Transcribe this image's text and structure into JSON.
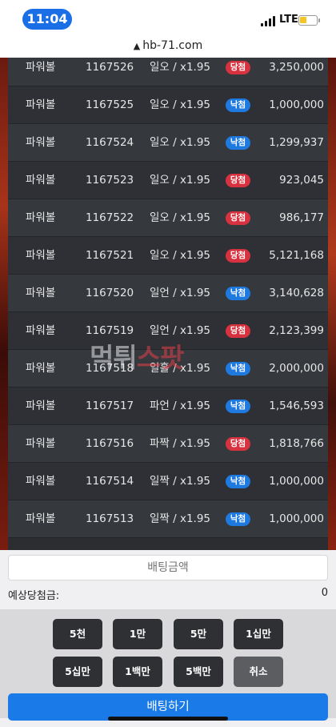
{
  "status": {
    "time": "11:04",
    "network": "LTE"
  },
  "browser": {
    "url": "hb-71.com"
  },
  "rows": [
    {
      "game": "파워볼",
      "round": "1167526",
      "pick": "일오 / x1.95",
      "result": "당첨",
      "amount": "3,250,000"
    },
    {
      "game": "파워볼",
      "round": "1167525",
      "pick": "일오 / x1.95",
      "result": "낙첨",
      "amount": "1,000,000"
    },
    {
      "game": "파워볼",
      "round": "1167524",
      "pick": "일오 / x1.95",
      "result": "낙첨",
      "amount": "1,299,937"
    },
    {
      "game": "파워볼",
      "round": "1167523",
      "pick": "일오 / x1.95",
      "result": "당첨",
      "amount": "923,045"
    },
    {
      "game": "파워볼",
      "round": "1167522",
      "pick": "일오 / x1.95",
      "result": "당첨",
      "amount": "986,177"
    },
    {
      "game": "파워볼",
      "round": "1167521",
      "pick": "일오 / x1.95",
      "result": "당첨",
      "amount": "5,121,168"
    },
    {
      "game": "파워볼",
      "round": "1167520",
      "pick": "일언 / x1.95",
      "result": "낙첨",
      "amount": "3,140,628"
    },
    {
      "game": "파워볼",
      "round": "1167519",
      "pick": "일언 / x1.95",
      "result": "당첨",
      "amount": "2,123,399"
    },
    {
      "game": "파워볼",
      "round": "1167518",
      "pick": "일홀 / x1.95",
      "result": "낙첨",
      "amount": "2,000,000"
    },
    {
      "game": "파워볼",
      "round": "1167517",
      "pick": "파언 / x1.95",
      "result": "낙첨",
      "amount": "1,546,593"
    },
    {
      "game": "파워볼",
      "round": "1167516",
      "pick": "파짝 / x1.95",
      "result": "당첨",
      "amount": "1,818,766"
    },
    {
      "game": "파워볼",
      "round": "1167514",
      "pick": "일짝 / x1.95",
      "result": "낙첨",
      "amount": "1,000,000"
    },
    {
      "game": "파워볼",
      "round": "1167513",
      "pick": "일짝 / x1.95",
      "result": "낙첨",
      "amount": "1,000,000"
    }
  ],
  "watermark": {
    "part1": "먹튀",
    "part2": "스팟"
  },
  "betting": {
    "amount_placeholder": "배팅금액",
    "expected_label": "예상당첨금:",
    "expected_value": "0",
    "chips": [
      "5천",
      "1만",
      "5만",
      "1십만",
      "5십만",
      "1백만",
      "5백만",
      "취소"
    ],
    "submit_label": "배팅하기"
  },
  "colors": {
    "win": "#d7323f",
    "lose": "#1f7ae0",
    "accent": "#1a7ae8"
  }
}
